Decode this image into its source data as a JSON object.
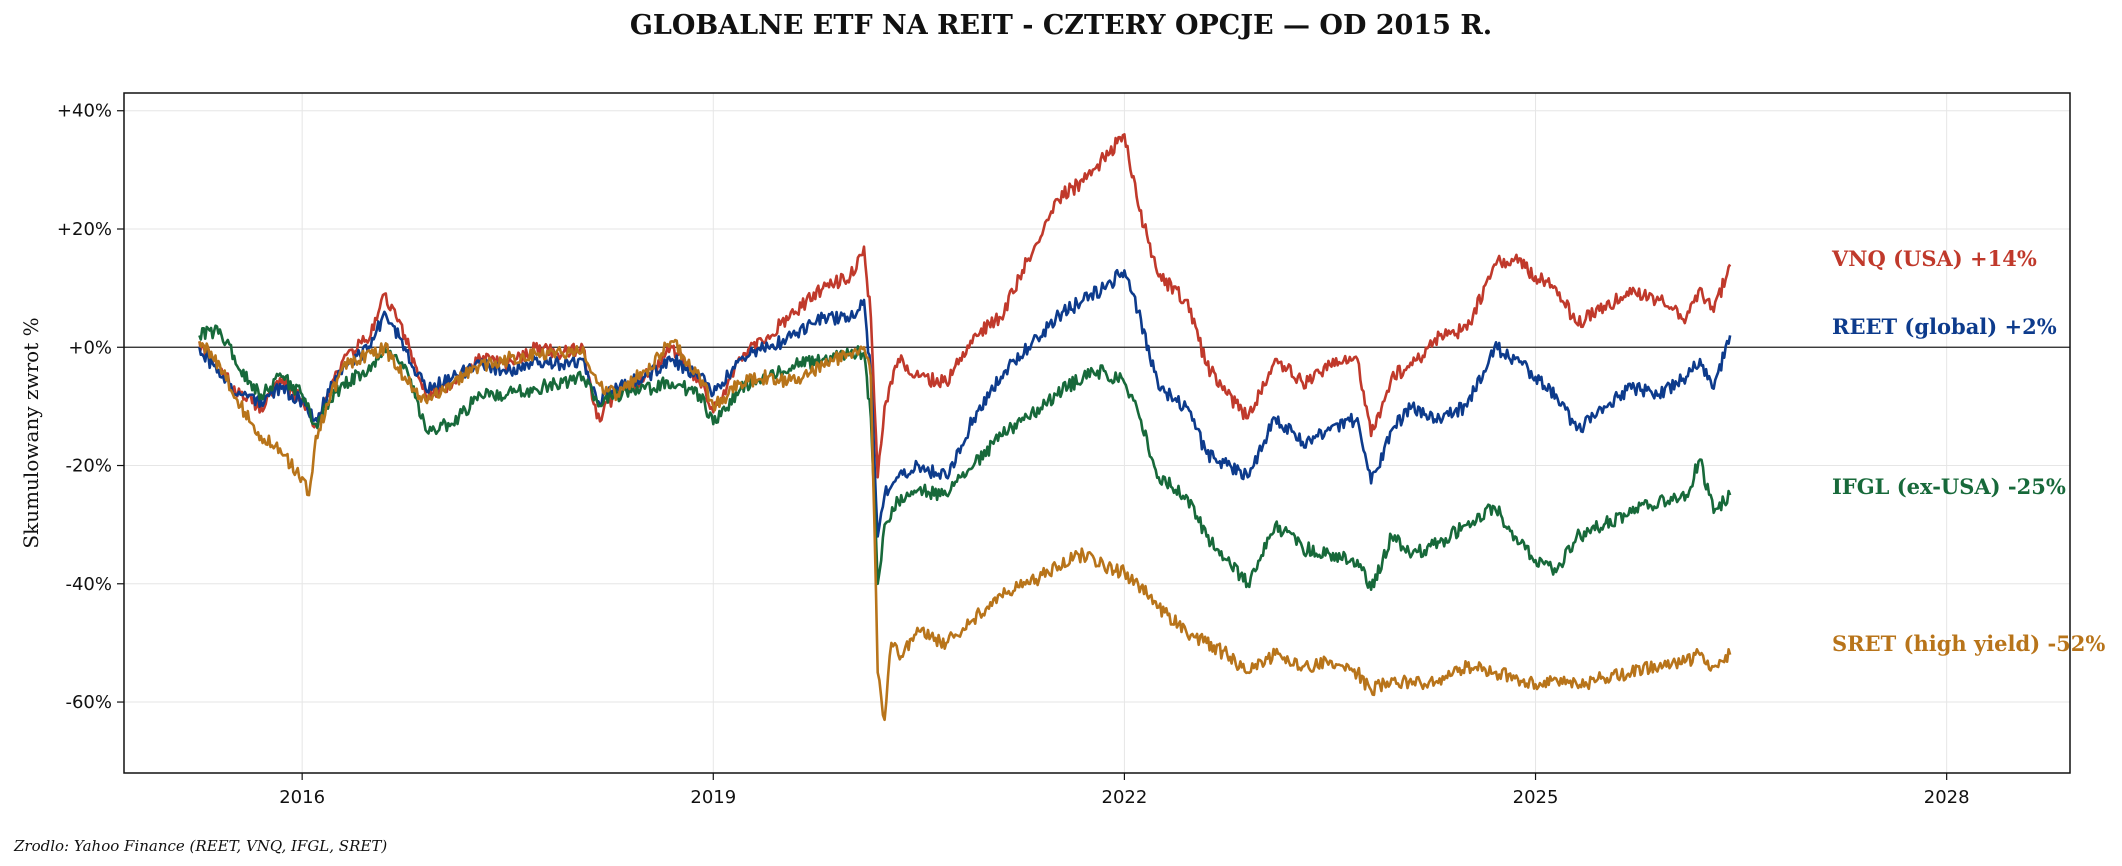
{
  "chart_data": {
    "type": "line",
    "title": "GLOBALNE ETF NA REIT - CZTERY OPCJE — OD 2015 R.",
    "ylabel": "Skumulowany zwrot %",
    "xlabel": "",
    "xlim": [
      2014.7,
      2028.9
    ],
    "ylim": [
      -72,
      43
    ],
    "x_ticks": [
      2016,
      2019,
      2022,
      2025,
      2028
    ],
    "x_tick_labels": [
      "2016",
      "2019",
      "2022",
      "2025",
      "2028"
    ],
    "y_ticks": [
      40,
      20,
      0,
      -20,
      -40,
      -60
    ],
    "y_tick_labels": [
      "+40%",
      "+20%",
      "+0%",
      "-20%",
      "-40%",
      "-60%"
    ],
    "grid": true,
    "zero_line": true,
    "source": "Zrodlo: Yahoo Finance (REET, VNQ, IFGL, SRET)",
    "series": [
      {
        "name": "VNQ (USA)",
        "label": "VNQ (USA)  +14%",
        "color": "#c0392b",
        "x": [
          2015.25,
          2015.4,
          2015.55,
          2015.7,
          2015.85,
          2016.0,
          2016.1,
          2016.3,
          2016.5,
          2016.6,
          2016.75,
          2016.9,
          2017.1,
          2017.3,
          2017.5,
          2017.7,
          2017.9,
          2018.05,
          2018.15,
          2018.3,
          2018.5,
          2018.7,
          2018.9,
          2019.0,
          2019.2,
          2019.4,
          2019.6,
          2019.8,
          2020.0,
          2020.1,
          2020.15,
          2020.2,
          2020.25,
          2020.35,
          2020.5,
          2020.7,
          2020.9,
          2021.1,
          2021.3,
          2021.5,
          2021.7,
          2021.85,
          2022.0,
          2022.1,
          2022.25,
          2022.45,
          2022.6,
          2022.75,
          2022.9,
          2023.1,
          2023.3,
          2023.5,
          2023.7,
          2023.8,
          2023.95,
          2024.1,
          2024.3,
          2024.5,
          2024.7,
          2024.85,
          2025.0,
          2025.15,
          2025.3,
          2025.5,
          2025.7,
          2025.9,
          2026.1,
          2026.2,
          2026.3,
          2026.42
        ],
        "y": [
          1,
          -4,
          -8,
          -10,
          -6,
          -9,
          -13,
          -2,
          2,
          9,
          2,
          -8,
          -6,
          -2,
          -3,
          0,
          -1,
          0,
          -12,
          -8,
          -5,
          0,
          -6,
          -11,
          -2,
          2,
          6,
          10,
          12,
          17,
          5,
          -22,
          -10,
          -2,
          -5,
          -6,
          2,
          5,
          15,
          25,
          28,
          32,
          36,
          24,
          12,
          8,
          -3,
          -8,
          -12,
          -2,
          -6,
          -3,
          -2,
          -15,
          -5,
          -3,
          2,
          3,
          14,
          15,
          12,
          10,
          4,
          7,
          9,
          8,
          5,
          10,
          6,
          14
        ],
        "end_value": "+14%"
      },
      {
        "name": "REET (global)",
        "label": "REET (global)  +2%",
        "color": "#0d3b8c",
        "x": [
          2015.25,
          2015.4,
          2015.55,
          2015.7,
          2015.85,
          2016.0,
          2016.1,
          2016.3,
          2016.5,
          2016.6,
          2016.75,
          2016.9,
          2017.1,
          2017.3,
          2017.5,
          2017.7,
          2017.9,
          2018.05,
          2018.15,
          2018.3,
          2018.5,
          2018.7,
          2018.9,
          2019.0,
          2019.2,
          2019.4,
          2019.6,
          2019.8,
          2020.0,
          2020.1,
          2020.15,
          2020.2,
          2020.25,
          2020.35,
          2020.5,
          2020.7,
          2020.9,
          2021.1,
          2021.3,
          2021.5,
          2021.7,
          2021.85,
          2022.0,
          2022.1,
          2022.25,
          2022.45,
          2022.6,
          2022.75,
          2022.9,
          2023.1,
          2023.3,
          2023.5,
          2023.7,
          2023.8,
          2023.95,
          2024.1,
          2024.3,
          2024.5,
          2024.7,
          2024.85,
          2025.0,
          2025.15,
          2025.3,
          2025.5,
          2025.7,
          2025.9,
          2026.1,
          2026.2,
          2026.3,
          2026.42
        ],
        "y": [
          0,
          -5,
          -8,
          -9,
          -7,
          -9,
          -12,
          -3,
          0,
          6,
          0,
          -7,
          -5,
          -3,
          -4,
          -2,
          -3,
          -2,
          -9,
          -7,
          -5,
          -2,
          -5,
          -8,
          -2,
          0,
          2,
          5,
          5,
          8,
          -5,
          -32,
          -25,
          -22,
          -20,
          -22,
          -12,
          -5,
          0,
          5,
          8,
          10,
          13,
          6,
          -7,
          -10,
          -18,
          -20,
          -22,
          -12,
          -16,
          -14,
          -12,
          -23,
          -14,
          -10,
          -12,
          -10,
          0,
          -2,
          -5,
          -8,
          -14,
          -10,
          -7,
          -8,
          -5,
          -2,
          -7,
          2
        ],
        "end_value": "+2%"
      },
      {
        "name": "IFGL (ex-USA)",
        "label": "IFGL (ex-USA)  -25%",
        "color": "#17693a",
        "x": [
          2015.25,
          2015.4,
          2015.55,
          2015.7,
          2015.85,
          2016.0,
          2016.1,
          2016.3,
          2016.5,
          2016.6,
          2016.75,
          2016.9,
          2017.1,
          2017.3,
          2017.5,
          2017.7,
          2017.9,
          2018.05,
          2018.15,
          2018.3,
          2018.5,
          2018.7,
          2018.9,
          2019.0,
          2019.2,
          2019.4,
          2019.6,
          2019.8,
          2020.0,
          2020.1,
          2020.15,
          2020.2,
          2020.25,
          2020.35,
          2020.5,
          2020.7,
          2020.9,
          2021.1,
          2021.3,
          2021.5,
          2021.7,
          2021.85,
          2022.0,
          2022.1,
          2022.25,
          2022.45,
          2022.6,
          2022.75,
          2022.9,
          2023.1,
          2023.3,
          2023.5,
          2023.7,
          2023.8,
          2023.95,
          2024.1,
          2024.3,
          2024.5,
          2024.7,
          2024.85,
          2025.0,
          2025.15,
          2025.3,
          2025.5,
          2025.7,
          2025.9,
          2026.1,
          2026.2,
          2026.3,
          2026.42
        ],
        "y": [
          2,
          3,
          -4,
          -8,
          -5,
          -8,
          -13,
          -6,
          -4,
          0,
          -3,
          -14,
          -13,
          -8,
          -8,
          -7,
          -6,
          -5,
          -9,
          -8,
          -7,
          -6,
          -8,
          -13,
          -7,
          -5,
          -3,
          -2,
          -1,
          -1,
          -12,
          -40,
          -30,
          -26,
          -24,
          -25,
          -20,
          -15,
          -12,
          -8,
          -5,
          -4,
          -6,
          -11,
          -22,
          -25,
          -32,
          -36,
          -40,
          -30,
          -34,
          -35,
          -36,
          -41,
          -32,
          -35,
          -33,
          -30,
          -27,
          -32,
          -36,
          -38,
          -32,
          -30,
          -28,
          -26,
          -25,
          -19,
          -28,
          -25
        ],
        "end_value": "-25%"
      },
      {
        "name": "SRET (high yield)",
        "label": "SRET (high yield)  -52%",
        "color": "#b8741a",
        "x": [
          2015.25,
          2015.4,
          2015.55,
          2015.7,
          2015.85,
          2016.0,
          2016.05,
          2016.1,
          2016.3,
          2016.5,
          2016.6,
          2016.75,
          2016.9,
          2017.1,
          2017.3,
          2017.5,
          2017.7,
          2017.9,
          2018.05,
          2018.15,
          2018.3,
          2018.5,
          2018.7,
          2018.9,
          2019.0,
          2019.2,
          2019.4,
          2019.6,
          2019.8,
          2020.0,
          2020.1,
          2020.15,
          2020.2,
          2020.25,
          2020.3,
          2020.35,
          2020.5,
          2020.7,
          2020.9,
          2021.1,
          2021.3,
          2021.5,
          2021.7,
          2021.85,
          2022.0,
          2022.1,
          2022.25,
          2022.45,
          2022.6,
          2022.75,
          2022.9,
          2023.1,
          2023.3,
          2023.5,
          2023.7,
          2023.8,
          2023.95,
          2024.1,
          2024.3,
          2024.5,
          2024.7,
          2024.85,
          2025.0,
          2025.15,
          2025.3,
          2025.5,
          2025.7,
          2025.9,
          2026.1,
          2026.2,
          2026.3,
          2026.42
        ],
        "y": [
          1,
          -3,
          -10,
          -15,
          -18,
          -22,
          -25,
          -15,
          -3,
          -1,
          0,
          -5,
          -9,
          -6,
          -3,
          -2,
          -1,
          -1,
          0,
          -6,
          -8,
          -4,
          1,
          -5,
          -10,
          -6,
          -5,
          -6,
          -3,
          -1,
          0,
          -5,
          -55,
          -63,
          -50,
          -52,
          -48,
          -50,
          -46,
          -42,
          -40,
          -37,
          -35,
          -37,
          -38,
          -40,
          -44,
          -48,
          -50,
          -52,
          -55,
          -52,
          -54,
          -53,
          -55,
          -58,
          -56,
          -57,
          -56,
          -54,
          -55,
          -56,
          -57,
          -56,
          -57,
          -56,
          -55,
          -54,
          -53,
          -52,
          -54,
          -52
        ],
        "end_value": "-52%"
      }
    ]
  }
}
